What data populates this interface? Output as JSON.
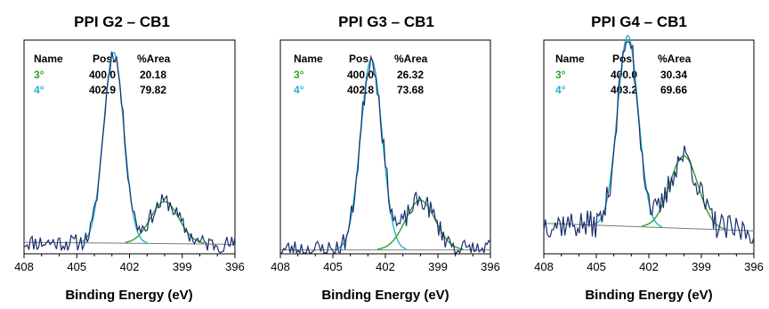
{
  "chart_data": [
    {
      "type": "line",
      "title": "PPI G2 – CB1",
      "xlabel": "Binding Energy (eV)",
      "ylabel": "",
      "xlim": [
        408,
        396
      ],
      "x_reversed": true,
      "x_ticks": [
        408,
        405,
        402,
        399,
        396
      ],
      "grid": false,
      "table": {
        "headers": [
          "Name",
          "Pos.",
          "%Area"
        ],
        "rows": [
          {
            "name": "3°",
            "pos": "400.0",
            "area": "20.18"
          },
          {
            "name": "4°",
            "pos": "402.9",
            "area": "79.82"
          }
        ]
      },
      "components": [
        {
          "label": "4°",
          "center": 402.9,
          "amplitude": 1.0,
          "fwhm": 1.35,
          "color": "#1fb5c8"
        },
        {
          "label": "3°",
          "center": 400.0,
          "amplitude": 0.22,
          "fwhm": 1.9,
          "color": "#2ca02c"
        }
      ],
      "baseline": {
        "start": 0.06,
        "end": 0.05
      },
      "ylim": [
        0,
        1.12
      ],
      "noise": 0.045,
      "seed": 11
    },
    {
      "type": "line",
      "title": "PPI G3 – CB1",
      "xlabel": "Binding Energy (eV)",
      "ylabel": "",
      "xlim": [
        408,
        396
      ],
      "x_reversed": true,
      "x_ticks": [
        408,
        405,
        402,
        399,
        396
      ],
      "grid": false,
      "table": {
        "headers": [
          "Name",
          "Pos.",
          "%Area"
        ],
        "rows": [
          {
            "name": "3°",
            "pos": "400.0",
            "area": "26.32"
          },
          {
            "name": "4°",
            "pos": "402.8",
            "area": "73.68"
          }
        ]
      },
      "components": [
        {
          "label": "4°",
          "center": 402.8,
          "amplitude": 1.0,
          "fwhm": 1.45,
          "color": "#1fb5c8"
        },
        {
          "label": "3°",
          "center": 400.0,
          "amplitude": 0.26,
          "fwhm": 2.0,
          "color": "#2ca02c"
        }
      ],
      "baseline": {
        "start": 0.02,
        "end": 0.02
      },
      "ylim": [
        0,
        1.12
      ],
      "noise": 0.055,
      "seed": 23
    },
    {
      "type": "line",
      "title": "PPI G4 – CB1",
      "xlabel": "Binding Energy (eV)",
      "ylabel": "",
      "xlim": [
        408,
        396
      ],
      "x_reversed": true,
      "x_ticks": [
        408,
        405,
        402,
        399,
        396
      ],
      "grid": false,
      "table": {
        "headers": [
          "Name",
          "Pos.",
          "%Area"
        ],
        "rows": [
          {
            "name": "3°",
            "pos": "400.0",
            "area": "30.34"
          },
          {
            "name": "4°",
            "pos": "403.2",
            "area": "69.66"
          }
        ]
      },
      "components": [
        {
          "label": "4°",
          "center": 403.2,
          "amplitude": 1.0,
          "fwhm": 1.4,
          "color": "#1fb5c8"
        },
        {
          "label": "3°",
          "center": 400.0,
          "amplitude": 0.38,
          "fwhm": 1.9,
          "color": "#2ca02c"
        }
      ],
      "baseline": {
        "start": 0.16,
        "end": 0.12
      },
      "ylim": [
        0,
        1.12
      ],
      "noise": 0.075,
      "seed": 37
    }
  ]
}
